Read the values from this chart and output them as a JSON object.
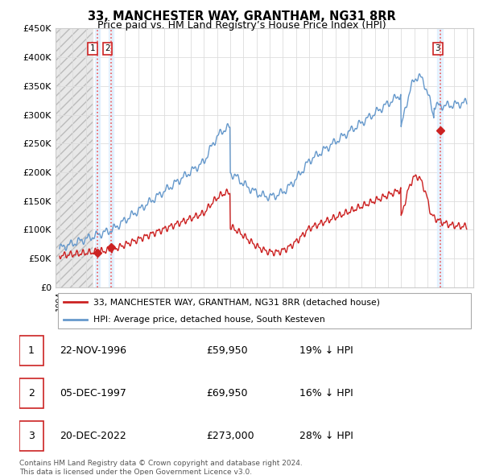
{
  "title": "33, MANCHESTER WAY, GRANTHAM, NG31 8RR",
  "subtitle": "Price paid vs. HM Land Registry’s House Price Index (HPI)",
  "ylim": [
    0,
    450000
  ],
  "yticks": [
    0,
    50000,
    100000,
    150000,
    200000,
    250000,
    300000,
    350000,
    400000,
    450000
  ],
  "ytick_labels": [
    "£0",
    "£50K",
    "£100K",
    "£150K",
    "£200K",
    "£250K",
    "£300K",
    "£350K",
    "£400K",
    "£450K"
  ],
  "legend_line1": "33, MANCHESTER WAY, GRANTHAM, NG31 8RR (detached house)",
  "legend_line2": "HPI: Average price, detached house, South Kesteven",
  "line_color_red": "#cc2222",
  "line_color_blue": "#6699cc",
  "table_rows": [
    {
      "num": "1",
      "date": "22-NOV-1996",
      "price": "£59,950",
      "hpi": "19% ↓ HPI"
    },
    {
      "num": "2",
      "date": "05-DEC-1997",
      "price": "£69,950",
      "hpi": "16% ↓ HPI"
    },
    {
      "num": "3",
      "date": "20-DEC-2022",
      "price": "£273,000",
      "hpi": "28% ↓ HPI"
    }
  ],
  "footer": "Contains HM Land Registry data © Crown copyright and database right 2024.\nThis data is licensed under the Open Government Licence v3.0.",
  "sale_dates": [
    1996.896,
    1997.922,
    2022.967
  ],
  "sale_prices": [
    59950,
    69950,
    273000
  ],
  "xmin": 1993.7,
  "xmax": 2025.5,
  "hatch_end": 1996.5
}
